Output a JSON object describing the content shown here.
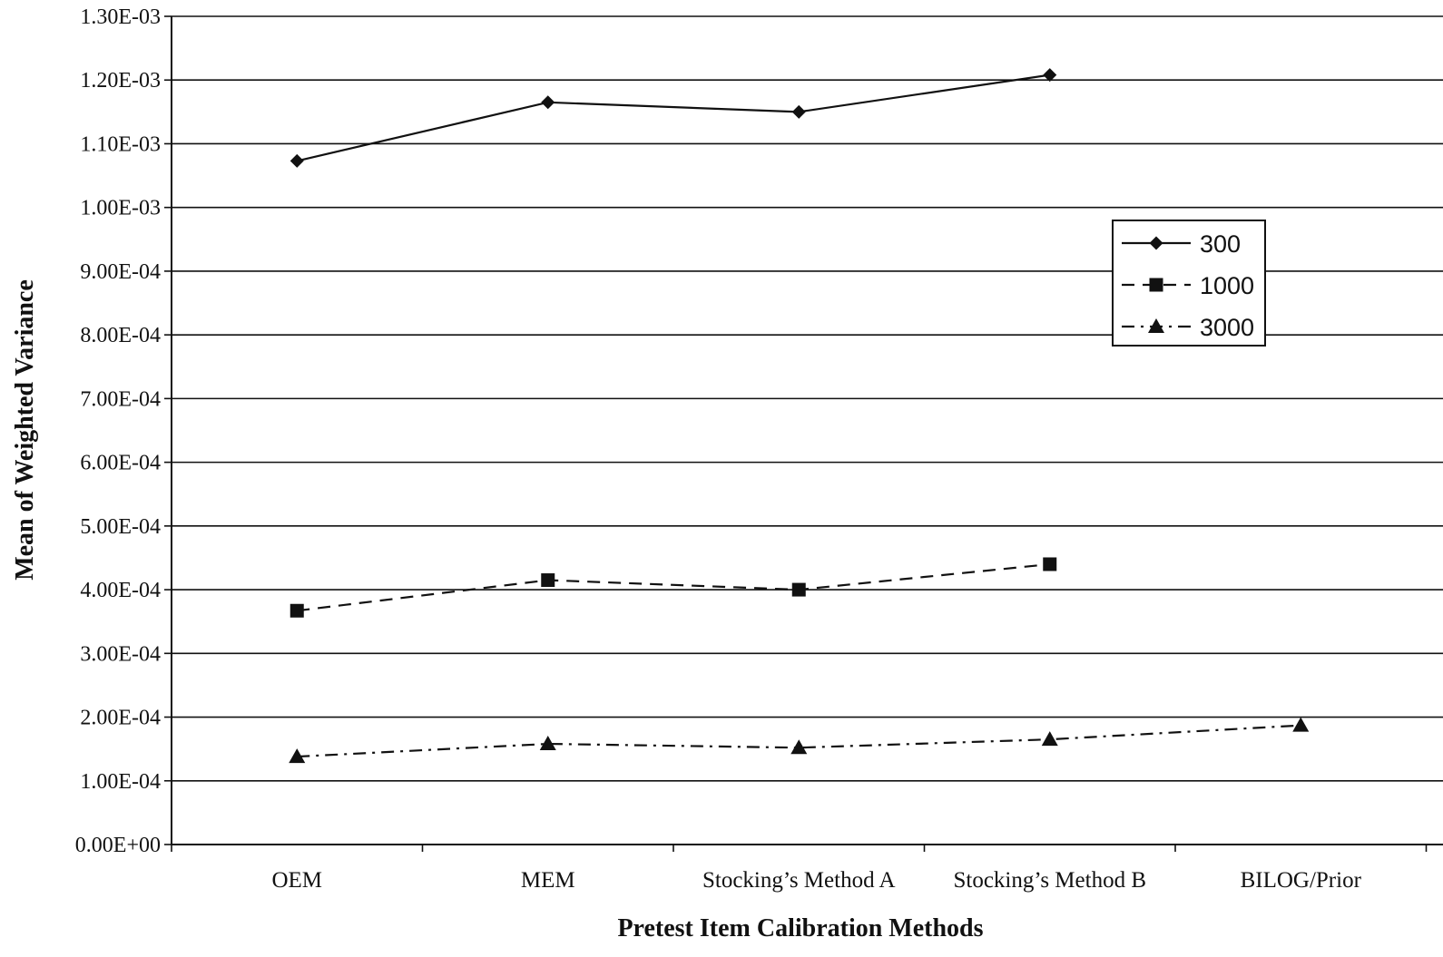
{
  "chart_data": {
    "type": "line",
    "categories": [
      "OEM",
      "MEM",
      "Stocking’s Method A",
      "Stocking’s Method B",
      "BILOG/Prior"
    ],
    "series": [
      {
        "name": "300",
        "marker": "diamond",
        "dash": "solid",
        "values": [
          0.001073,
          0.001165,
          0.00115,
          0.001208,
          null
        ]
      },
      {
        "name": "1000",
        "marker": "square",
        "dash": "dashed",
        "values": [
          0.000367,
          0.000415,
          0.0004,
          0.00044,
          null
        ]
      },
      {
        "name": "3000",
        "marker": "triangle",
        "dash": "dashdot",
        "values": [
          0.000138,
          0.000158,
          0.000152,
          0.000165,
          0.000187
        ]
      }
    ],
    "yticks": [
      "0.00E+00",
      "1.00E-04",
      "2.00E-04",
      "3.00E-04",
      "4.00E-04",
      "5.00E-04",
      "6.00E-04",
      "7.00E-04",
      "8.00E-04",
      "9.00E-04",
      "1.00E-03",
      "1.10E-03",
      "1.20E-03",
      "1.30E-03"
    ],
    "ylim": [
      0,
      0.0013
    ],
    "xlabel": "Pretest Item Calibration Methods",
    "ylabel": "Mean of Weighted Variance",
    "grid": true,
    "legend_position": "upper-right",
    "colors": {
      "line": "#111111",
      "grid": "#111111",
      "background": "#ffffff"
    }
  }
}
